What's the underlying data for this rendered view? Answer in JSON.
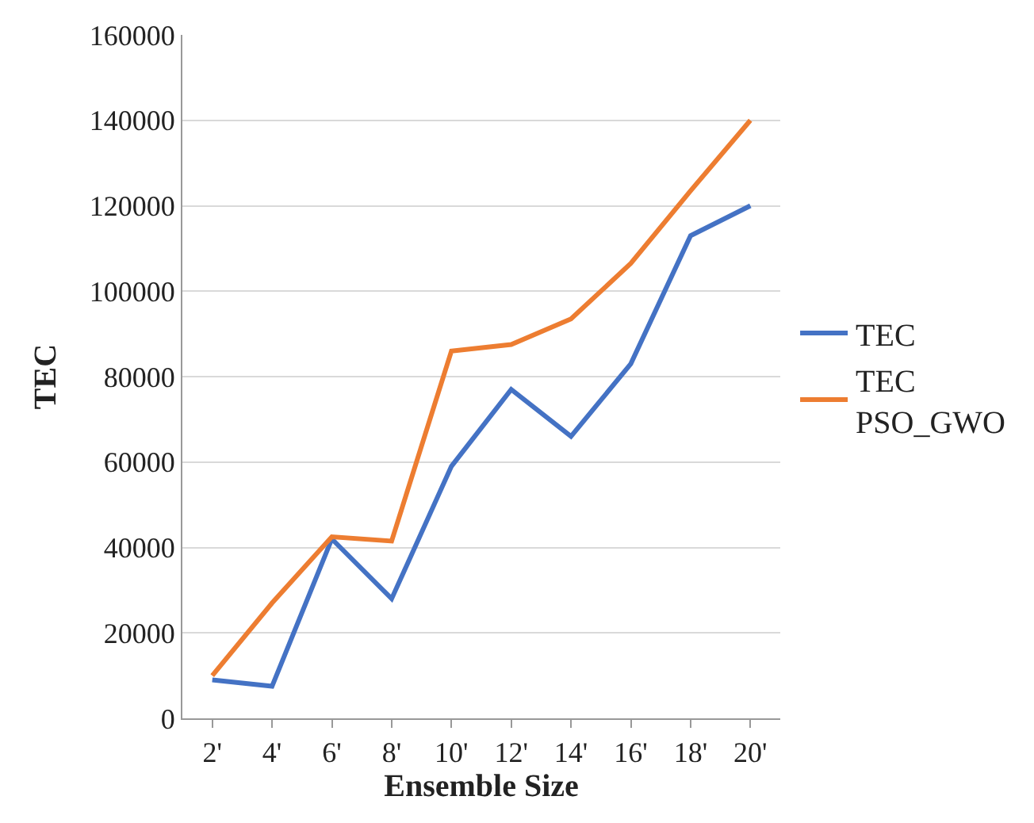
{
  "chart_data": {
    "type": "line",
    "xlabel": "Ensemble Size",
    "ylabel": "TEC",
    "categories": [
      "2'",
      "4'",
      "6'",
      "8'",
      "10'",
      "12'",
      "14'",
      "16'",
      "18'",
      "20'"
    ],
    "series": [
      {
        "name": "TEC",
        "color": "#4472c4",
        "values": [
          9000,
          7500,
          42000,
          28000,
          59000,
          77000,
          66000,
          83000,
          113000,
          120000
        ]
      },
      {
        "name": "TEC PSO_GWO",
        "color": "#ed7d31",
        "values": [
          10000,
          27000,
          42500,
          41500,
          86000,
          87500,
          93500,
          106500,
          123500,
          140000
        ]
      }
    ],
    "ylim": [
      0,
      160000
    ],
    "yticks": [
      0,
      20000,
      40000,
      60000,
      80000,
      100000,
      120000,
      140000,
      160000
    ],
    "grid": "y",
    "legend": "right",
    "marker": "none",
    "line_style": "solid"
  }
}
